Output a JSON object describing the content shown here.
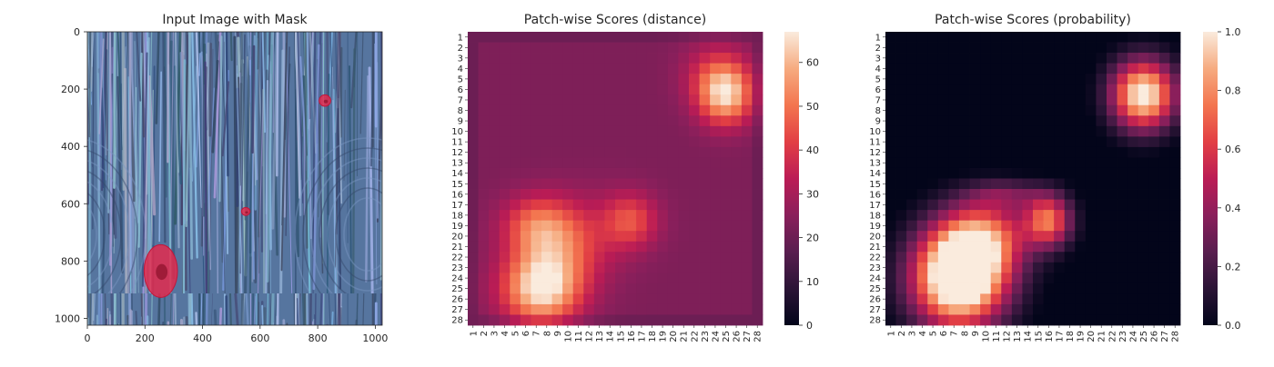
{
  "chart_data": [
    {
      "type": "image",
      "title": "Input Image with Mask",
      "xticks": [
        0,
        200,
        400,
        600,
        800,
        1000
      ],
      "yticks": [
        0,
        200,
        400,
        600,
        800,
        1000
      ],
      "xlim": [
        0,
        1024
      ],
      "ylim": [
        1024,
        0
      ],
      "background": "wood texture, blue tint",
      "mask_color": "#e8284a",
      "mask_regions": [
        {
          "cx": 255,
          "cy": 835,
          "rx": 58,
          "ry": 92
        },
        {
          "cx": 825,
          "cy": 240,
          "rx": 20,
          "ry": 20
        },
        {
          "cx": 550,
          "cy": 627,
          "rx": 15,
          "ry": 14
        }
      ]
    },
    {
      "type": "heatmap",
      "title": "Patch-wise Scores (distance)",
      "rows": 28,
      "cols": 28,
      "tick_labels": [
        "1",
        "2",
        "3",
        "4",
        "5",
        "6",
        "7",
        "8",
        "9",
        "10",
        "11",
        "12",
        "13",
        "14",
        "15",
        "16",
        "17",
        "18",
        "19",
        "20",
        "21",
        "22",
        "23",
        "24",
        "25",
        "26",
        "27",
        "28"
      ],
      "colormap": "rocket",
      "vmin": 0,
      "vmax": 67,
      "colorbar_ticks": [
        0,
        10,
        20,
        30,
        40,
        50,
        60
      ],
      "baseline_value": 23,
      "hotspots": [
        {
          "row": 25,
          "col": 7.5,
          "sx": 2.6,
          "sy": 2.4,
          "peak": 44
        },
        {
          "row": 18.5,
          "col": 16,
          "sx": 1.8,
          "sy": 1.8,
          "peak": 20
        },
        {
          "row": 19,
          "col": 7,
          "sx": 2.3,
          "sy": 2.0,
          "peak": 22
        },
        {
          "row": 21,
          "col": 9,
          "sx": 2.6,
          "sy": 2.6,
          "peak": 15
        },
        {
          "row": 6.5,
          "col": 25,
          "sx": 1.8,
          "sy": 2.0,
          "peak": 38
        },
        {
          "row": 4.5,
          "col": 24,
          "sx": 2.2,
          "sy": 2.2,
          "peak": 12
        },
        {
          "row": 20,
          "col": 12,
          "sx": 3.0,
          "sy": 3.0,
          "peak": 8
        }
      ]
    },
    {
      "type": "heatmap",
      "title": "Patch-wise Scores (probability)",
      "rows": 28,
      "cols": 28,
      "tick_labels": [
        "1",
        "2",
        "3",
        "4",
        "5",
        "6",
        "7",
        "8",
        "9",
        "10",
        "11",
        "12",
        "13",
        "14",
        "15",
        "16",
        "17",
        "18",
        "19",
        "20",
        "21",
        "22",
        "23",
        "24",
        "25",
        "26",
        "27",
        "28"
      ],
      "colormap": "rocket",
      "vmin": 0.0,
      "vmax": 1.0,
      "colorbar_ticks": [
        0.0,
        0.2,
        0.4,
        0.6,
        0.8,
        1.0
      ],
      "colorbar_tick_labels": [
        "0.0",
        "0.2",
        "0.4",
        "0.6",
        "0.8",
        "1.0"
      ],
      "hotspots": [
        {
          "row": 24,
          "col": 7.5,
          "sx": 3.2,
          "sy": 3.4,
          "peak": 1.35
        },
        {
          "row": 18.5,
          "col": 16,
          "sx": 1.6,
          "sy": 1.8,
          "peak": 0.75
        },
        {
          "row": 20,
          "col": 10,
          "sx": 3.0,
          "sy": 2.6,
          "peak": 0.6
        },
        {
          "row": 6.5,
          "col": 25,
          "sx": 2.2,
          "sy": 2.4,
          "peak": 1.1
        },
        {
          "row": 16,
          "col": 12,
          "sx": 2.5,
          "sy": 1.0,
          "peak": 0.25
        }
      ]
    }
  ]
}
